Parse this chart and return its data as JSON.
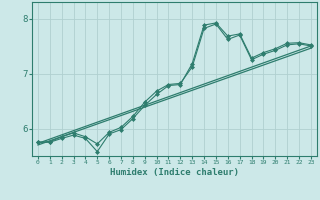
{
  "xlabel": "Humidex (Indice chaleur)",
  "bg_color": "#cce8e8",
  "grid_color": "#b0d0d0",
  "line_color": "#2e7d6e",
  "xlim": [
    -0.5,
    23.5
  ],
  "ylim": [
    5.5,
    8.3
  ],
  "yticks": [
    6,
    7,
    8
  ],
  "ytick_labels": [
    "6",
    "7",
    "8"
  ],
  "xticks": [
    0,
    1,
    2,
    3,
    4,
    5,
    6,
    7,
    8,
    9,
    10,
    11,
    12,
    13,
    14,
    15,
    16,
    17,
    18,
    19,
    20,
    21,
    22,
    23
  ],
  "series": [
    {
      "x": [
        0,
        1,
        2,
        3,
        4,
        5,
        6,
        7,
        8,
        9,
        10,
        11,
        12,
        13,
        14,
        15,
        16,
        17,
        18,
        19,
        20,
        21,
        22,
        23
      ],
      "y": [
        5.75,
        5.75,
        5.82,
        5.88,
        5.82,
        5.58,
        5.9,
        5.98,
        6.18,
        6.42,
        6.62,
        6.78,
        6.8,
        7.18,
        7.88,
        7.92,
        7.68,
        7.72,
        7.28,
        7.38,
        7.45,
        7.55,
        7.56,
        7.52
      ],
      "marker": true
    },
    {
      "x": [
        0,
        1,
        2,
        3,
        4,
        5,
        6,
        7,
        8,
        9,
        10,
        11,
        12,
        13,
        14,
        15,
        16,
        17,
        18,
        19,
        20,
        21,
        22,
        23
      ],
      "y": [
        5.75,
        5.76,
        5.85,
        5.92,
        5.85,
        5.72,
        5.93,
        6.02,
        6.22,
        6.48,
        6.68,
        6.8,
        6.82,
        7.12,
        7.82,
        7.9,
        7.62,
        7.7,
        7.25,
        7.35,
        7.42,
        7.52,
        7.54,
        7.5
      ],
      "marker": true
    },
    {
      "x": [
        0,
        23
      ],
      "y": [
        5.73,
        7.5
      ],
      "marker": false
    },
    {
      "x": [
        0,
        23
      ],
      "y": [
        5.7,
        7.46
      ],
      "marker": false
    }
  ]
}
